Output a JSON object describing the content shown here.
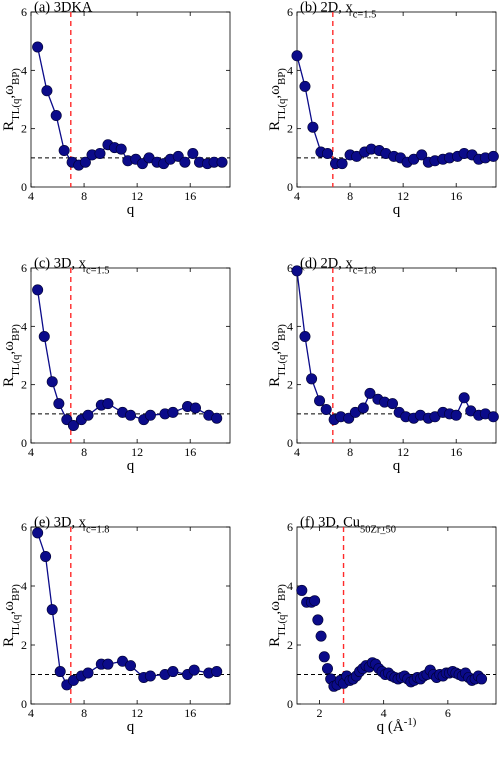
{
  "chart_data": [
    {
      "type": "line",
      "title": "(a) 3DKA",
      "xlabel": "q",
      "ylabel": "R_TL(q,ω_BP)",
      "xlim": [
        4,
        19
      ],
      "ylim": [
        0,
        6
      ],
      "xticks": [
        4,
        8,
        12,
        16
      ],
      "yticks": [
        0,
        2,
        4,
        6
      ],
      "hline": 1.0,
      "vline": 7.0,
      "grid": false,
      "x": [
        4.5,
        5.2,
        5.9,
        6.5,
        7.1,
        7.6,
        8.1,
        8.6,
        9.2,
        9.8,
        10.3,
        10.8,
        11.3,
        11.9,
        12.4,
        12.9,
        13.5,
        14.0,
        14.5,
        15.1,
        15.6,
        16.2,
        16.7,
        17.3,
        17.8,
        18.4
      ],
      "y": [
        4.8,
        3.3,
        2.45,
        1.25,
        0.85,
        0.75,
        0.85,
        1.1,
        1.15,
        1.45,
        1.35,
        1.3,
        0.9,
        0.95,
        0.8,
        1.0,
        0.85,
        0.8,
        0.95,
        1.05,
        0.85,
        1.15,
        0.85,
        0.8,
        0.85,
        0.85
      ]
    },
    {
      "type": "line",
      "title": "(b) 2D, x_c=1.5",
      "xlabel": "q",
      "ylabel": "R_TL(q,ω_BP)",
      "xlim": [
        4,
        19
      ],
      "ylim": [
        0,
        6
      ],
      "xticks": [
        4,
        8,
        12,
        16
      ],
      "yticks": [
        0,
        2,
        4,
        6
      ],
      "hline": 1.0,
      "vline": 6.7,
      "grid": false,
      "x": [
        4.0,
        4.6,
        5.2,
        5.8,
        6.3,
        6.9,
        7.4,
        8.0,
        8.5,
        9.1,
        9.6,
        10.2,
        10.7,
        11.3,
        11.8,
        12.3,
        12.8,
        13.4,
        13.9,
        14.4,
        15.0,
        15.5,
        16.1,
        16.6,
        17.2,
        17.7,
        18.2,
        18.8
      ],
      "y": [
        4.5,
        3.45,
        2.05,
        1.2,
        1.15,
        0.8,
        0.8,
        1.1,
        1.05,
        1.2,
        1.3,
        1.25,
        1.15,
        1.05,
        1.0,
        0.85,
        0.95,
        1.1,
        0.85,
        0.9,
        0.95,
        1.0,
        1.05,
        1.15,
        1.1,
        0.95,
        1.0,
        1.05
      ]
    },
    {
      "type": "line",
      "title": "(c) 3D, x_c=1.5",
      "xlabel": "q",
      "ylabel": "R_TL(q,ω_BP)",
      "xlim": [
        4,
        19
      ],
      "ylim": [
        0,
        6
      ],
      "xticks": [
        4,
        8,
        12,
        16
      ],
      "yticks": [
        0,
        2,
        4,
        6
      ],
      "hline": 1.0,
      "vline": 7.0,
      "grid": false,
      "x": [
        4.5,
        5.0,
        5.6,
        6.1,
        6.7,
        7.2,
        7.8,
        8.3,
        9.3,
        9.8,
        10.9,
        11.5,
        12.5,
        13.0,
        14.1,
        14.7,
        15.8,
        16.4,
        17.4,
        18.0
      ],
      "y": [
        5.25,
        3.65,
        2.1,
        1.35,
        0.8,
        0.6,
        0.8,
        0.95,
        1.3,
        1.35,
        1.05,
        0.95,
        0.8,
        0.95,
        1.0,
        1.05,
        1.25,
        1.2,
        0.95,
        0.85
      ]
    },
    {
      "type": "line",
      "title": "(d) 2D, x_c=1.8",
      "xlabel": "q",
      "ylabel": "R_TL(q,ω_BP)",
      "xlim": [
        4,
        19
      ],
      "ylim": [
        0,
        6
      ],
      "xticks": [
        4,
        8,
        12,
        16
      ],
      "yticks": [
        0,
        2,
        4,
        6
      ],
      "hline": 1.0,
      "vline": 6.7,
      "grid": false,
      "x": [
        4.0,
        4.6,
        5.1,
        5.7,
        6.2,
        6.8,
        7.3,
        7.9,
        8.4,
        9.0,
        9.5,
        10.1,
        10.6,
        11.2,
        11.7,
        12.2,
        12.8,
        13.3,
        13.9,
        14.4,
        15.0,
        15.5,
        16.0,
        16.6,
        17.1,
        17.7,
        18.2,
        18.8
      ],
      "y": [
        5.9,
        3.65,
        2.2,
        1.45,
        1.15,
        0.8,
        0.9,
        0.85,
        1.05,
        1.2,
        1.7,
        1.5,
        1.4,
        1.35,
        1.05,
        0.9,
        0.85,
        0.95,
        0.85,
        0.9,
        1.05,
        1.0,
        0.95,
        1.55,
        1.1,
        0.95,
        1.0,
        0.9
      ]
    },
    {
      "type": "line",
      "title": "(e) 3D, x_c=1.8",
      "xlabel": "q",
      "ylabel": "R_TL(q,ω_BP)",
      "xlim": [
        4,
        19
      ],
      "ylim": [
        0,
        6
      ],
      "xticks": [
        4,
        8,
        12,
        16
      ],
      "yticks": [
        0,
        2,
        4,
        6
      ],
      "hline": 1.0,
      "vline": 7.0,
      "grid": false,
      "x": [
        4.5,
        5.1,
        5.6,
        6.2,
        6.7,
        7.2,
        7.8,
        8.3,
        9.3,
        9.8,
        10.9,
        11.5,
        12.5,
        13.0,
        14.1,
        14.7,
        15.8,
        16.3,
        17.4,
        18.0
      ],
      "y": [
        5.8,
        5.0,
        3.2,
        1.1,
        0.65,
        0.8,
        0.95,
        1.05,
        1.35,
        1.35,
        1.45,
        1.3,
        0.9,
        0.95,
        1.0,
        1.1,
        1.0,
        1.15,
        1.05,
        1.1
      ]
    },
    {
      "type": "scatter",
      "title": "(f) 3D, Cu_50Zr_50",
      "xlabel": "q (Å^-1)",
      "ylabel": "R_TL(q,ω_BP)",
      "xlim": [
        1.3,
        7.5
      ],
      "ylim": [
        0,
        6
      ],
      "xticks": [
        2,
        4,
        6
      ],
      "yticks": [
        0,
        2,
        4,
        6
      ],
      "hline": 1.0,
      "vline": 2.75,
      "grid": false,
      "x": [
        1.45,
        1.6,
        1.75,
        1.85,
        1.95,
        2.05,
        2.15,
        2.25,
        2.35,
        2.45,
        2.55,
        2.65,
        2.75,
        2.85,
        2.95,
        3.05,
        3.15,
        3.25,
        3.35,
        3.45,
        3.55,
        3.65,
        3.75,
        3.85,
        3.95,
        4.05,
        4.15,
        4.25,
        4.35,
        4.45,
        4.55,
        4.65,
        4.75,
        4.85,
        4.95,
        5.05,
        5.15,
        5.25,
        5.35,
        5.45,
        5.55,
        5.65,
        5.75,
        5.85,
        5.95,
        6.05,
        6.15,
        6.25,
        6.35,
        6.45,
        6.55,
        6.65,
        6.75,
        6.85,
        6.95,
        7.05
      ],
      "y": [
        3.85,
        3.45,
        3.45,
        3.5,
        2.85,
        2.3,
        1.6,
        1.2,
        0.85,
        0.6,
        0.65,
        0.8,
        0.7,
        0.95,
        0.8,
        0.85,
        0.95,
        1.1,
        1.2,
        1.3,
        1.25,
        1.4,
        1.35,
        1.2,
        1.1,
        1.0,
        1.05,
        0.95,
        0.9,
        0.85,
        0.9,
        0.95,
        0.85,
        0.75,
        0.8,
        0.9,
        0.85,
        0.95,
        1.0,
        1.15,
        1.0,
        0.9,
        1.0,
        0.95,
        1.05,
        1.05,
        1.1,
        1.05,
        1.0,
        0.95,
        1.05,
        0.9,
        0.8,
        0.85,
        0.95,
        0.85
      ]
    }
  ]
}
